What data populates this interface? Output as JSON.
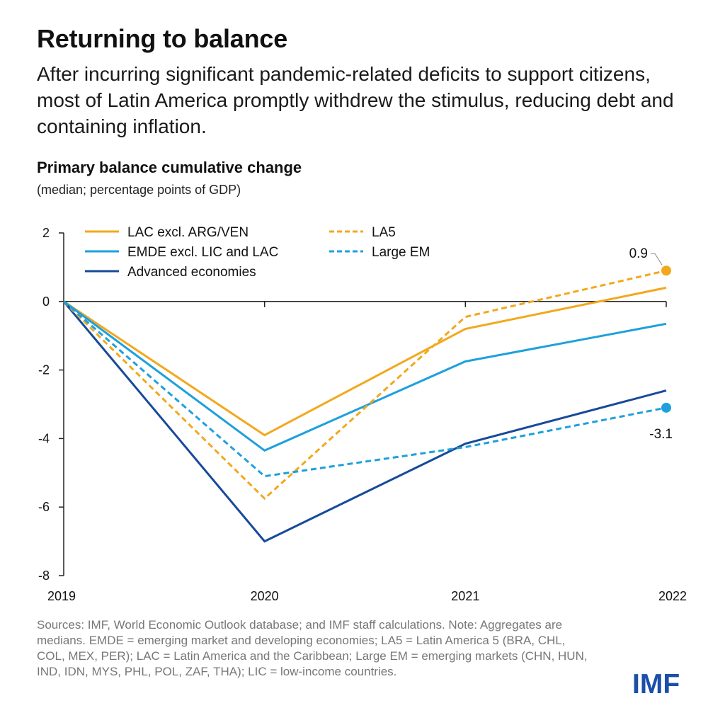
{
  "header": {
    "title": "Returning to balance",
    "subtitle": "After incurring significant pandemic-related deficits to support citizens, most of Latin America promptly withdrew the stimulus, reducing debt and containing inflation."
  },
  "chart_data": {
    "type": "line",
    "title": "Primary balance cumulative change",
    "subtitle": "(median; percentage points of GDP)",
    "xlabel": "",
    "ylabel": "",
    "x": [
      "2019",
      "2020",
      "2021",
      "2022"
    ],
    "ylim": [
      -8,
      2
    ],
    "yticks": [
      2,
      0,
      -2,
      -4,
      -6,
      -8
    ],
    "grid": false,
    "legend_position": "top-left",
    "series": [
      {
        "name": "LAC excl. ARG/VEN",
        "values": [
          0,
          -3.9,
          -0.8,
          0.4
        ],
        "color": "#F2A81D",
        "dash": "solid"
      },
      {
        "name": "EMDE excl. LIC and LAC",
        "values": [
          0,
          -4.35,
          -1.75,
          -0.65
        ],
        "color": "#1EA0DC",
        "dash": "solid"
      },
      {
        "name": "Advanced economies",
        "values": [
          0,
          -7.0,
          -4.15,
          -2.6
        ],
        "color": "#174A9A",
        "dash": "solid"
      },
      {
        "name": "LA5",
        "values": [
          0,
          -5.75,
          -0.45,
          0.9
        ],
        "color": "#F2A81D",
        "dash": "dashed"
      },
      {
        "name": "Large EM",
        "values": [
          0,
          -5.1,
          -4.25,
          -3.1
        ],
        "color": "#1EA0DC",
        "dash": "dashed"
      }
    ],
    "annotations": [
      {
        "series": "LA5",
        "x": "2022",
        "label": "0.9"
      },
      {
        "series": "Large EM",
        "x": "2022",
        "label": "-3.1"
      }
    ]
  },
  "footnote": "Sources: IMF, World Economic Outlook database; and IMF staff calculations. Note: Aggregates are medians. EMDE = emerging market and developing economies; LA5 = Latin America 5 (BRA, CHL, COL, MEX, PER); LAC = Latin America and the Caribbean; Large EM = emerging markets (CHN, HUN, IND, IDN, MYS, PHL, POL, ZAF, THA); LIC = low-income countries.",
  "logo": {
    "text": "IMF"
  }
}
